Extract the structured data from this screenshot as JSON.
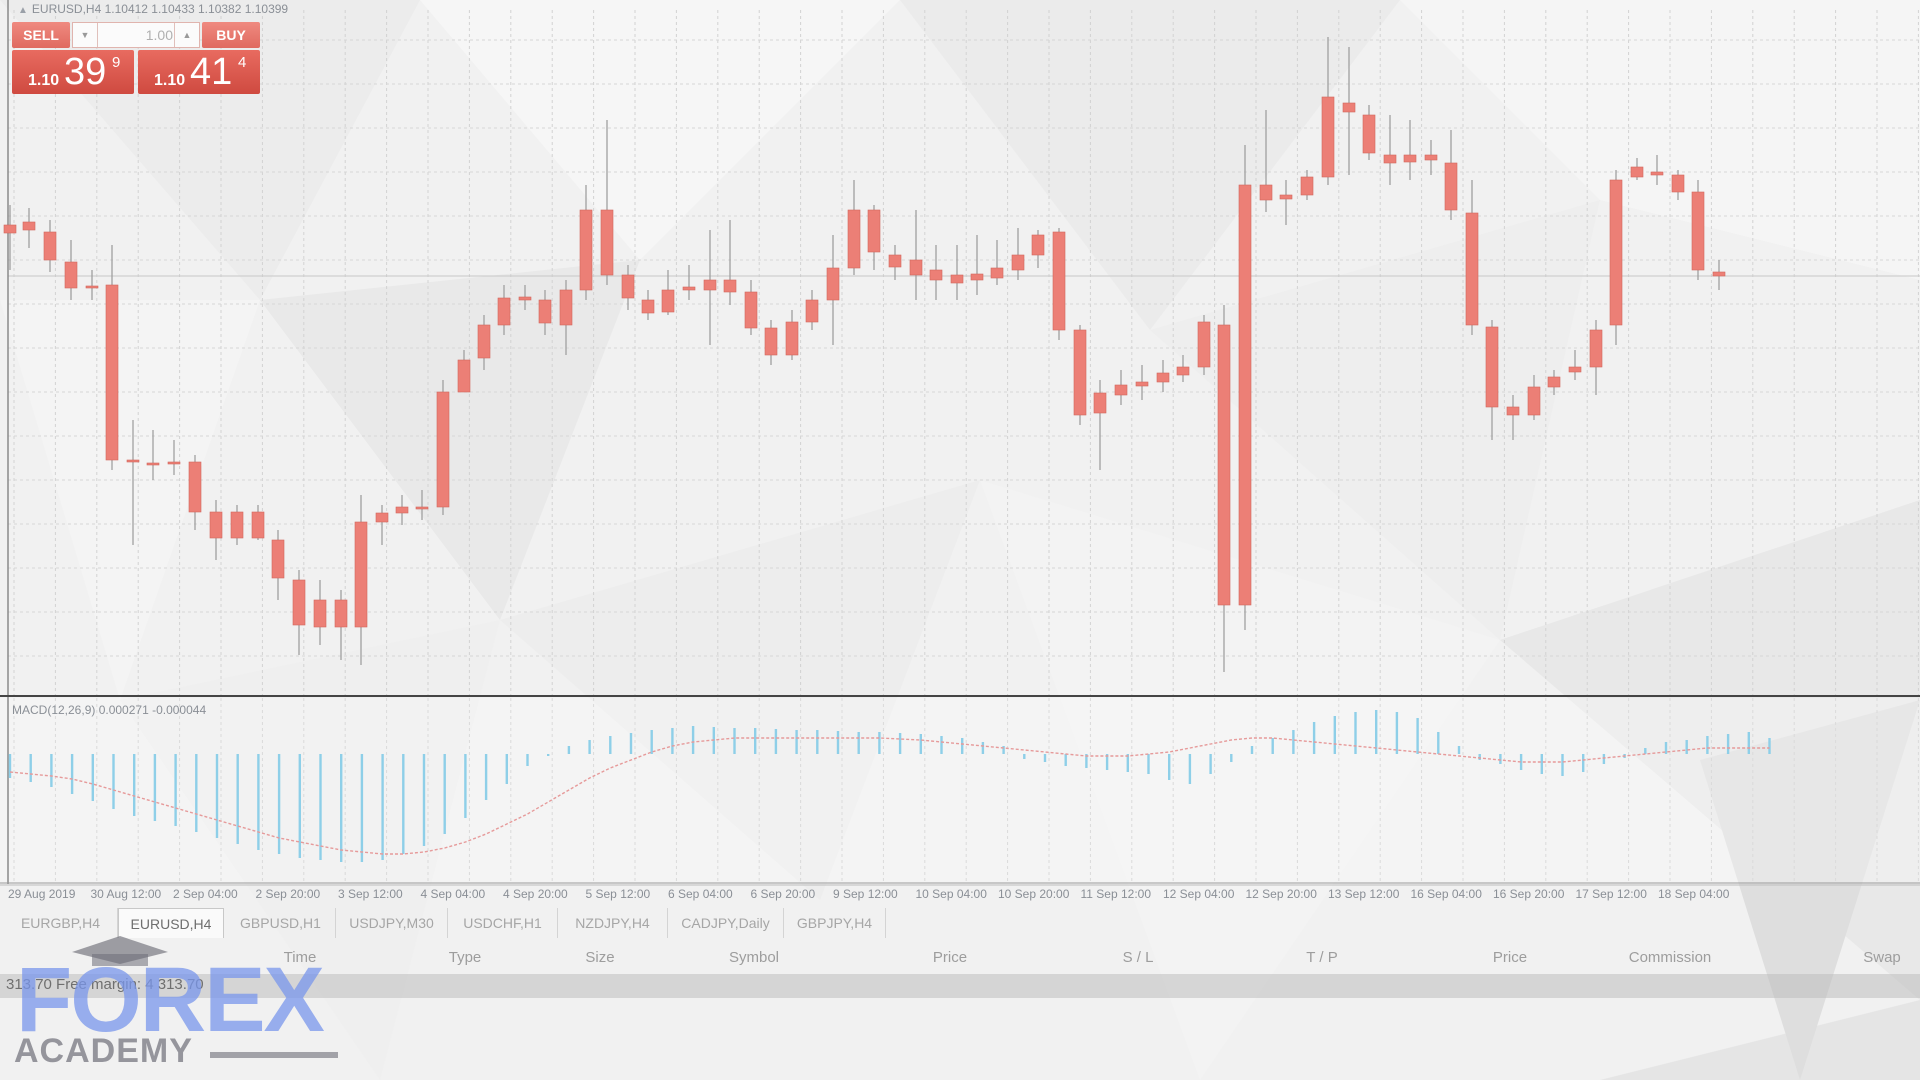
{
  "chart": {
    "symbol_line": "EURUSD,H4  1.10412 1.10433 1.10382 1.10399",
    "macd_label": "MACD(12,26,9) 0.000271 -0.000044",
    "time_labels": [
      "29 Aug 2019",
      "30 Aug 12:00",
      "2 Sep 04:00",
      "2 Sep 20:00",
      "3 Sep 12:00",
      "4 Sep 04:00",
      "4 Sep 20:00",
      "5 Sep 12:00",
      "6 Sep 04:00",
      "6 Sep 20:00",
      "9 Sep 12:00",
      "10 Sep 04:00",
      "10 Sep 20:00",
      "11 Sep 12:00",
      "12 Sep 04:00",
      "12 Sep 20:00",
      "13 Sep 12:00",
      "16 Sep 04:00",
      "16 Sep 20:00",
      "17 Sep 12:00",
      "18 Sep 04:00"
    ],
    "colors": {
      "bull": "#6aa36a",
      "bear": "#ec7f76",
      "macd_hist": "#8ecfe8",
      "signal": "#e69a9a"
    }
  },
  "trade_panel": {
    "sell_label": "SELL",
    "buy_label": "BUY",
    "lot_value": "1.00",
    "sell_quote": {
      "prefix": "1.10",
      "big": "39",
      "sup": "9"
    },
    "buy_quote": {
      "prefix": "1.10",
      "big": "41",
      "sup": "4"
    }
  },
  "tabs": [
    {
      "label": "EURGBP,H4",
      "active": false
    },
    {
      "label": "EURUSD,H4",
      "active": true
    },
    {
      "label": "GBPUSD,H1",
      "active": false
    },
    {
      "label": "USDJPY,M30",
      "active": false
    },
    {
      "label": "USDCHF,H1",
      "active": false
    },
    {
      "label": "NZDJPY,H4",
      "active": false
    },
    {
      "label": "CADJPY,Daily",
      "active": false
    },
    {
      "label": "GBPJPY,H4",
      "active": false
    }
  ],
  "terminal": {
    "columns": [
      "Time",
      "Type",
      "Size",
      "Symbol",
      "Price",
      "S / L",
      "T / P",
      "Price",
      "Commission",
      "Swap"
    ],
    "balance_text": "313.70  Free margin: 4 313.70"
  },
  "watermark": {
    "main": "FOREX",
    "sub": "ACADEMY"
  }
}
